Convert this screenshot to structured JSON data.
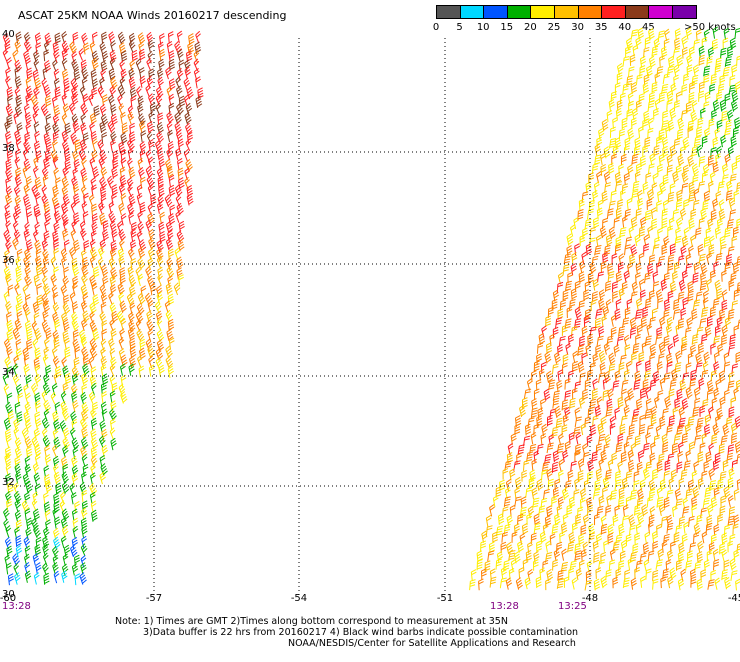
{
  "title": "ASCAT 25KM NOAA Winds 20160217 descending",
  "legend": {
    "colors": [
      "#555555",
      "#00d8ff",
      "#0055ff",
      "#00b000",
      "#ffee00",
      "#ffc000",
      "#ff8000",
      "#ff2020",
      "#8b3a1a",
      "#d000d0",
      "#7a00aa"
    ],
    "labels": [
      "0",
      "5",
      "10",
      "15",
      "20",
      "25",
      "30",
      "35",
      "40",
      "45",
      ">50 knots"
    ]
  },
  "axes": {
    "lon_labels": [
      "-60",
      "-57",
      "-54",
      "-51",
      "-48",
      "-45"
    ],
    "lat_labels": [
      "40",
      "38",
      "36",
      "34",
      "32",
      "30"
    ]
  },
  "swath_times": [
    "13:28",
    "13:28",
    "13:25"
  ],
  "notes": [
    "Note: 1) Times are GMT 2)Times along bottom correspond to measurement at 35N",
    "3)Data buffer is 22 hrs from 20160217 4) Black wind barbs indicate possible contamination",
    "NOAA/NESDIS/Center for Satellite Applications and Research"
  ]
}
